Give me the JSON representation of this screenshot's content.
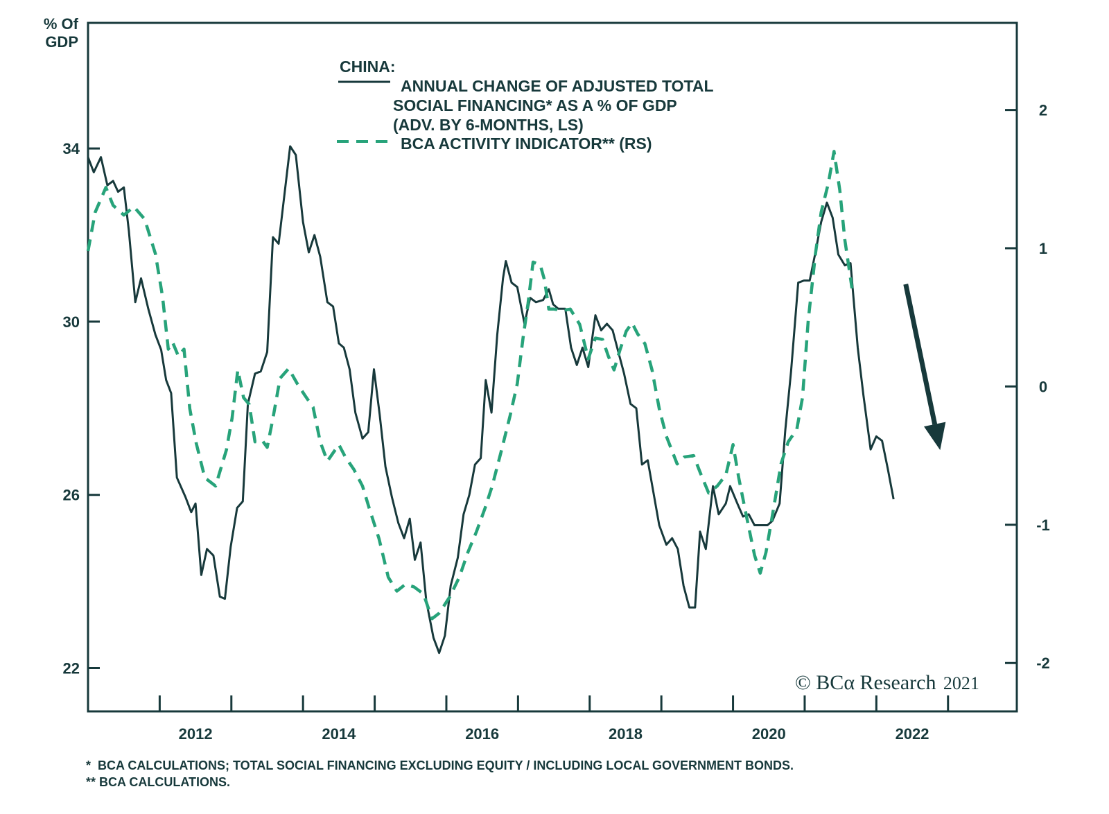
{
  "chart_data": {
    "type": "line",
    "title": "CHINA:",
    "left_axis": {
      "label_line1": "% Of",
      "label_line2": "GDP",
      "ticks": [
        22,
        26,
        30,
        34
      ],
      "range": [
        21.0,
        36.9
      ]
    },
    "right_axis": {
      "ticks": [
        -2,
        -1,
        0,
        1,
        2
      ],
      "range": [
        -2.35,
        2.63
      ]
    },
    "x_axis": {
      "tick_labels": [
        "2012",
        "2014",
        "2016",
        "2018",
        "2020",
        "2022"
      ],
      "range": [
        2011.0,
        2023.96
      ],
      "minor_ticks": [
        2012,
        2013,
        2014,
        2015,
        2016,
        2017,
        2018,
        2019,
        2020,
        2021,
        2022,
        2023
      ]
    },
    "legend": {
      "placement": "top-center",
      "entries": [
        {
          "lines": [
            "ANNUAL CHANGE OF ADJUSTED TOTAL",
            "SOCIAL FINANCING* AS A % OF GDP",
            "(ADV. BY 6-MONTHS, LS)"
          ],
          "style": "solid"
        },
        {
          "lines": [
            "BCA ACTIVITY INDICATOR** (RS)"
          ],
          "style": "dashed"
        }
      ]
    },
    "series": [
      {
        "name": "Annual change of adjusted total social financing as a % of GDP (adv. by 6-months, LS)",
        "axis": "left",
        "style": "solid",
        "color": "#17393b",
        "points": [
          [
            2011.0,
            33.8
          ],
          [
            2011.08,
            33.45
          ],
          [
            2011.18,
            33.8
          ],
          [
            2011.27,
            33.15
          ],
          [
            2011.35,
            33.25
          ],
          [
            2011.42,
            33.0
          ],
          [
            2011.5,
            33.1
          ],
          [
            2011.57,
            32.1
          ],
          [
            2011.66,
            30.45
          ],
          [
            2011.74,
            31.0
          ],
          [
            2011.84,
            30.3
          ],
          [
            2011.94,
            29.7
          ],
          [
            2012.02,
            29.35
          ],
          [
            2012.09,
            28.65
          ],
          [
            2012.16,
            28.35
          ],
          [
            2012.24,
            26.4
          ],
          [
            2012.36,
            25.95
          ],
          [
            2012.44,
            25.6
          ],
          [
            2012.5,
            25.8
          ],
          [
            2012.58,
            24.15
          ],
          [
            2012.66,
            24.75
          ],
          [
            2012.75,
            24.6
          ],
          [
            2012.84,
            23.65
          ],
          [
            2012.91,
            23.6
          ],
          [
            2012.99,
            24.8
          ],
          [
            2013.08,
            25.7
          ],
          [
            2013.16,
            25.85
          ],
          [
            2013.23,
            28.1
          ],
          [
            2013.33,
            28.8
          ],
          [
            2013.41,
            28.85
          ],
          [
            2013.5,
            29.3
          ],
          [
            2013.58,
            31.95
          ],
          [
            2013.66,
            31.8
          ],
          [
            2013.82,
            34.05
          ],
          [
            2013.9,
            33.85
          ],
          [
            2014.0,
            32.3
          ],
          [
            2014.08,
            31.6
          ],
          [
            2014.16,
            32.0
          ],
          [
            2014.24,
            31.5
          ],
          [
            2014.34,
            30.45
          ],
          [
            2014.42,
            30.35
          ],
          [
            2014.5,
            29.5
          ],
          [
            2014.57,
            29.4
          ],
          [
            2014.65,
            28.9
          ],
          [
            2014.73,
            27.9
          ],
          [
            2014.83,
            27.3
          ],
          [
            2014.91,
            27.45
          ],
          [
            2014.99,
            28.9
          ],
          [
            2015.07,
            27.85
          ],
          [
            2015.15,
            26.65
          ],
          [
            2015.24,
            25.95
          ],
          [
            2015.33,
            25.35
          ],
          [
            2015.41,
            25.0
          ],
          [
            2015.49,
            25.45
          ],
          [
            2015.56,
            24.5
          ],
          [
            2015.64,
            24.9
          ],
          [
            2015.72,
            23.55
          ],
          [
            2015.82,
            22.7
          ],
          [
            2015.9,
            22.35
          ],
          [
            2015.98,
            22.75
          ],
          [
            2016.06,
            23.9
          ],
          [
            2016.16,
            24.55
          ],
          [
            2016.24,
            25.55
          ],
          [
            2016.32,
            26.0
          ],
          [
            2016.4,
            26.7
          ],
          [
            2016.48,
            26.85
          ],
          [
            2016.55,
            28.65
          ],
          [
            2016.63,
            27.9
          ],
          [
            2016.71,
            29.7
          ],
          [
            2016.79,
            31.0
          ],
          [
            2016.83,
            31.4
          ],
          [
            2016.91,
            30.9
          ],
          [
            2016.99,
            30.8
          ],
          [
            2017.09,
            29.95
          ],
          [
            2017.17,
            30.55
          ],
          [
            2017.25,
            30.45
          ],
          [
            2017.35,
            30.5
          ],
          [
            2017.43,
            30.75
          ],
          [
            2017.49,
            30.4
          ],
          [
            2017.56,
            30.3
          ],
          [
            2017.66,
            30.3
          ],
          [
            2017.74,
            29.4
          ],
          [
            2017.82,
            29.0
          ],
          [
            2017.9,
            29.4
          ],
          [
            2017.98,
            28.95
          ],
          [
            2018.08,
            30.15
          ],
          [
            2018.16,
            29.8
          ],
          [
            2018.24,
            29.95
          ],
          [
            2018.32,
            29.8
          ],
          [
            2018.4,
            29.3
          ],
          [
            2018.48,
            28.8
          ],
          [
            2018.57,
            28.1
          ],
          [
            2018.65,
            28.0
          ],
          [
            2018.73,
            26.7
          ],
          [
            2018.81,
            26.8
          ],
          [
            2018.89,
            26.05
          ],
          [
            2018.97,
            25.3
          ],
          [
            2019.07,
            24.85
          ],
          [
            2019.15,
            25.0
          ],
          [
            2019.23,
            24.75
          ],
          [
            2019.31,
            23.9
          ],
          [
            2019.39,
            23.4
          ],
          [
            2019.47,
            23.4
          ],
          [
            2019.54,
            25.15
          ],
          [
            2019.62,
            24.75
          ],
          [
            2019.72,
            26.2
          ],
          [
            2019.8,
            25.55
          ],
          [
            2019.9,
            25.8
          ],
          [
            2019.96,
            26.2
          ],
          [
            2020.06,
            25.8
          ],
          [
            2020.14,
            25.5
          ],
          [
            2020.22,
            25.55
          ],
          [
            2020.3,
            25.3
          ],
          [
            2020.38,
            25.3
          ],
          [
            2020.48,
            25.3
          ],
          [
            2020.55,
            25.4
          ],
          [
            2020.65,
            25.8
          ],
          [
            2020.73,
            27.5
          ],
          [
            2020.81,
            28.85
          ],
          [
            2020.91,
            30.9
          ],
          [
            2020.99,
            30.95
          ],
          [
            2021.07,
            30.95
          ],
          [
            2021.15,
            31.6
          ],
          [
            2021.23,
            32.3
          ],
          [
            2021.31,
            32.75
          ],
          [
            2021.39,
            32.4
          ],
          [
            2021.47,
            31.55
          ],
          [
            2021.56,
            31.3
          ],
          [
            2021.64,
            31.35
          ],
          [
            2021.74,
            29.4
          ],
          [
            2021.82,
            28.3
          ],
          [
            2021.92,
            27.05
          ],
          [
            2022.0,
            27.35
          ],
          [
            2022.08,
            27.25
          ],
          [
            2022.16,
            26.6
          ],
          [
            2022.24,
            25.9
          ]
        ]
      },
      {
        "name": "BCA activity indicator (RS)",
        "axis": "right",
        "style": "dashed",
        "color": "#27a37a",
        "points": [
          [
            2011.0,
            0.98
          ],
          [
            2011.1,
            1.26
          ],
          [
            2011.25,
            1.44
          ],
          [
            2011.35,
            1.31
          ],
          [
            2011.5,
            1.24
          ],
          [
            2011.64,
            1.3
          ],
          [
            2011.79,
            1.21
          ],
          [
            2011.94,
            0.96
          ],
          [
            2012.04,
            0.65
          ],
          [
            2012.12,
            0.27
          ],
          [
            2012.18,
            0.32
          ],
          [
            2012.26,
            0.22
          ],
          [
            2012.34,
            0.27
          ],
          [
            2012.42,
            -0.16
          ],
          [
            2012.51,
            -0.41
          ],
          [
            2012.63,
            -0.66
          ],
          [
            2012.78,
            -0.72
          ],
          [
            2012.93,
            -0.46
          ],
          [
            2013.01,
            -0.23
          ],
          [
            2013.09,
            0.12
          ],
          [
            2013.17,
            -0.08
          ],
          [
            2013.25,
            -0.13
          ],
          [
            2013.33,
            -0.4
          ],
          [
            2013.43,
            -0.39
          ],
          [
            2013.5,
            -0.44
          ],
          [
            2013.58,
            -0.23
          ],
          [
            2013.68,
            0.06
          ],
          [
            2013.8,
            0.13
          ],
          [
            2013.92,
            0.02
          ],
          [
            2014.02,
            -0.06
          ],
          [
            2014.14,
            -0.15
          ],
          [
            2014.24,
            -0.4
          ],
          [
            2014.34,
            -0.54
          ],
          [
            2014.5,
            -0.42
          ],
          [
            2014.59,
            -0.51
          ],
          [
            2014.71,
            -0.6
          ],
          [
            2014.83,
            -0.72
          ],
          [
            2014.93,
            -0.89
          ],
          [
            2015.06,
            -1.1
          ],
          [
            2015.19,
            -1.38
          ],
          [
            2015.31,
            -1.48
          ],
          [
            2015.43,
            -1.43
          ],
          [
            2015.55,
            -1.45
          ],
          [
            2015.68,
            -1.5
          ],
          [
            2015.8,
            -1.68
          ],
          [
            2015.9,
            -1.64
          ],
          [
            2016.05,
            -1.52
          ],
          [
            2016.18,
            -1.38
          ],
          [
            2016.3,
            -1.2
          ],
          [
            2016.42,
            -1.05
          ],
          [
            2016.54,
            -0.88
          ],
          [
            2016.64,
            -0.72
          ],
          [
            2016.77,
            -0.46
          ],
          [
            2016.89,
            -0.21
          ],
          [
            2016.99,
            0.02
          ],
          [
            2017.07,
            0.35
          ],
          [
            2017.14,
            0.6
          ],
          [
            2017.21,
            0.9
          ],
          [
            2017.31,
            0.88
          ],
          [
            2017.37,
            0.77
          ],
          [
            2017.43,
            0.56
          ],
          [
            2017.5,
            0.56
          ],
          [
            2017.63,
            0.55
          ],
          [
            2017.73,
            0.56
          ],
          [
            2017.86,
            0.45
          ],
          [
            2017.98,
            0.2
          ],
          [
            2018.08,
            0.35
          ],
          [
            2018.18,
            0.34
          ],
          [
            2018.26,
            0.22
          ],
          [
            2018.34,
            0.12
          ],
          [
            2018.42,
            0.26
          ],
          [
            2018.51,
            0.4
          ],
          [
            2018.59,
            0.46
          ],
          [
            2018.67,
            0.38
          ],
          [
            2018.77,
            0.31
          ],
          [
            2018.87,
            0.12
          ],
          [
            2018.97,
            -0.16
          ],
          [
            2019.07,
            -0.36
          ],
          [
            2019.22,
            -0.56
          ],
          [
            2019.32,
            -0.51
          ],
          [
            2019.45,
            -0.5
          ],
          [
            2019.54,
            -0.62
          ],
          [
            2019.66,
            -0.77
          ],
          [
            2019.78,
            -0.72
          ],
          [
            2019.9,
            -0.64
          ],
          [
            2020.0,
            -0.42
          ],
          [
            2020.08,
            -0.66
          ],
          [
            2020.18,
            -0.92
          ],
          [
            2020.3,
            -1.22
          ],
          [
            2020.38,
            -1.35
          ],
          [
            2020.46,
            -1.2
          ],
          [
            2020.57,
            -0.87
          ],
          [
            2020.67,
            -0.56
          ],
          [
            2020.77,
            -0.4
          ],
          [
            2020.89,
            -0.31
          ],
          [
            2020.97,
            -0.08
          ],
          [
            2021.05,
            0.48
          ],
          [
            2021.15,
            0.96
          ],
          [
            2021.23,
            1.26
          ],
          [
            2021.33,
            1.47
          ],
          [
            2021.41,
            1.7
          ],
          [
            2021.49,
            1.42
          ],
          [
            2021.56,
            1.06
          ],
          [
            2021.66,
            0.71
          ]
        ]
      }
    ],
    "annotations": [
      {
        "type": "arrow",
        "direction": "down",
        "description": "downward trend arrow",
        "from": [
          2022.41,
          0.74
        ],
        "to": [
          2022.89,
          -0.46
        ],
        "axis": "right"
      }
    ],
    "grid": false
  },
  "labels": {
    "left_axis_title_1": "% Of",
    "left_axis_title_2": "GDP",
    "legend_title": "CHINA:",
    "legend_solid_1": "ANNUAL CHANGE OF ADJUSTED TOTAL",
    "legend_solid_2": "SOCIAL FINANCING* AS A % OF GDP",
    "legend_solid_3": "(ADV. BY 6-MONTHS, LS)",
    "legend_dashed": "BCA ACTIVITY INDICATOR** (RS)",
    "copyright_prefix": "© BCα Research",
    "copyright_year": "2021",
    "footnote_1": "*  BCA CALCULATIONS; TOTAL SOCIAL FINANCING EXCLUDING EQUITY / INCLUDING LOCAL GOVERNMENT BONDS.",
    "footnote_2": "** BCA CALCULATIONS."
  },
  "colors": {
    "axis": "#17393b",
    "solid_series": "#17393b",
    "dashed_series": "#27a37a",
    "arrow": "#17393b"
  }
}
